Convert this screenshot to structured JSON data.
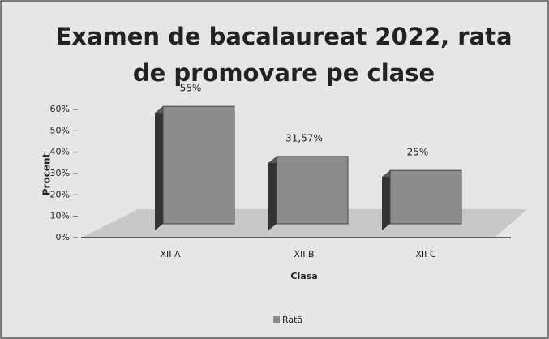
{
  "chart_data": {
    "type": "bar",
    "title": "Examen de bacalaureat 2022, rata de promovare pe clase",
    "categories": [
      "XII A",
      "XII B",
      "XII C"
    ],
    "series": [
      {
        "name": "Rată",
        "color": "#8c8c8c",
        "values": [
          55,
          31.57,
          25
        ],
        "value_labels": [
          "55%",
          "31,57%",
          "25%"
        ]
      }
    ],
    "xlabel": "Clasa",
    "ylabel": "Procent",
    "ylim": [
      0,
      60
    ],
    "yticks": [
      {
        "value": 0,
        "label": "0%"
      },
      {
        "value": 10,
        "label": "10%"
      },
      {
        "value": 20,
        "label": "20%"
      },
      {
        "value": 30,
        "label": "30%"
      },
      {
        "value": 40,
        "label": "40%"
      },
      {
        "value": 50,
        "label": "50%"
      },
      {
        "value": 60,
        "label": "60%"
      }
    ],
    "legend": "bottom"
  }
}
